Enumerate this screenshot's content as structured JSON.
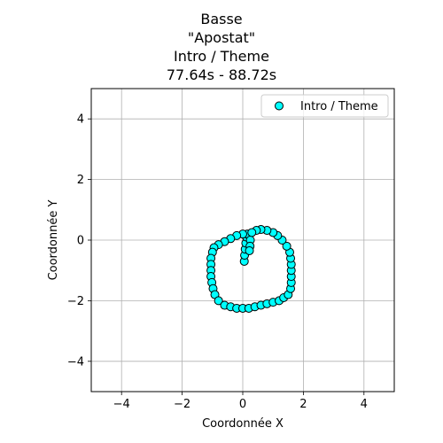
{
  "chart_data": {
    "type": "scatter",
    "title_lines": [
      "Basse",
      "\"Apostat\"",
      "Intro / Theme",
      "77.64s - 88.72s"
    ],
    "xlabel": "Coordonnée X",
    "ylabel": "Coordonnée Y",
    "xlim": [
      -5,
      5
    ],
    "ylim": [
      -5,
      5
    ],
    "xticks": [
      -4,
      -2,
      0,
      2,
      4
    ],
    "yticks": [
      -4,
      -2,
      0,
      2,
      4
    ],
    "xtick_labels": [
      "−4",
      "−2",
      "0",
      "2",
      "4"
    ],
    "ytick_labels": [
      "−4",
      "−2",
      "0",
      "2",
      "4"
    ],
    "grid": true,
    "legend_position": "top-right",
    "series": [
      {
        "name": "Intro / Theme",
        "color": "#00ffff",
        "edge_color": "#000000",
        "points": [
          [
            0.05,
            -0.7
          ],
          [
            0.06,
            -0.5
          ],
          [
            0.08,
            -0.3
          ],
          [
            0.1,
            -0.1
          ],
          [
            0.12,
            0.1
          ],
          [
            0.15,
            0.2
          ],
          [
            0.25,
            0.0
          ],
          [
            0.24,
            -0.2
          ],
          [
            0.22,
            -0.35
          ],
          [
            0.0,
            0.2
          ],
          [
            -0.2,
            0.15
          ],
          [
            -0.4,
            0.05
          ],
          [
            -0.6,
            -0.05
          ],
          [
            -0.8,
            -0.15
          ],
          [
            -0.95,
            -0.25
          ],
          [
            -1.0,
            -0.4
          ],
          [
            -1.05,
            -0.6
          ],
          [
            -1.05,
            -0.8
          ],
          [
            -1.05,
            -1.0
          ],
          [
            -1.05,
            -1.2
          ],
          [
            -1.02,
            -1.4
          ],
          [
            -0.98,
            -1.6
          ],
          [
            -0.92,
            -1.8
          ],
          [
            -0.8,
            -2.0
          ],
          [
            -0.6,
            -2.15
          ],
          [
            -0.4,
            -2.2
          ],
          [
            -0.2,
            -2.25
          ],
          [
            0.0,
            -2.25
          ],
          [
            0.2,
            -2.25
          ],
          [
            0.4,
            -2.2
          ],
          [
            0.6,
            -2.15
          ],
          [
            0.8,
            -2.1
          ],
          [
            1.0,
            -2.05
          ],
          [
            1.2,
            -2.0
          ],
          [
            1.35,
            -1.9
          ],
          [
            1.5,
            -1.8
          ],
          [
            1.58,
            -1.6
          ],
          [
            1.6,
            -1.4
          ],
          [
            1.6,
            -1.2
          ],
          [
            1.6,
            -1.0
          ],
          [
            1.6,
            -0.8
          ],
          [
            1.58,
            -0.6
          ],
          [
            1.55,
            -0.4
          ],
          [
            1.45,
            -0.2
          ],
          [
            1.3,
            0.0
          ],
          [
            1.15,
            0.15
          ],
          [
            1.0,
            0.25
          ],
          [
            0.8,
            0.32
          ],
          [
            0.6,
            0.35
          ],
          [
            0.45,
            0.32
          ],
          [
            0.3,
            0.25
          ]
        ]
      }
    ]
  }
}
